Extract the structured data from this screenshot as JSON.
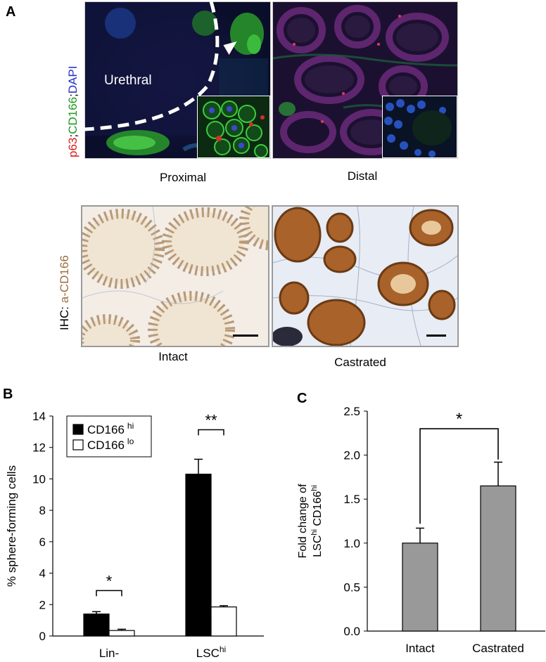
{
  "panel_a": {
    "letter": "A",
    "fluor_label": {
      "p63": "p63",
      "sep1": ";",
      "cd166": "CD166",
      "sep2": ";",
      "dapi": "DAPI"
    },
    "urethral_label": "Urethral",
    "captions": {
      "proximal": "Proximal",
      "distal": "Distal",
      "intact": "Intact",
      "castrated": "Castrated"
    },
    "ihc_label": {
      "prefix": "IHC: ",
      "antibody": "a-CD166"
    },
    "colors": {
      "p63": "#d81e1e",
      "cd166": "#1e9a1e",
      "dapi": "#2233cc",
      "ihc_label": "#9a7040"
    }
  },
  "panel_b": {
    "letter": "B",
    "chart_data": {
      "type": "bar",
      "categories": [
        "Lin-",
        "LSChi"
      ],
      "category_labels": [
        {
          "main": "Lin-",
          "sup": ""
        },
        {
          "main": "LSC",
          "sup": "hi"
        }
      ],
      "series": [
        {
          "name": "CD166 hi",
          "label_main": "CD166",
          "label_sup": "hi",
          "color": "#000000",
          "values": [
            1.4,
            10.3
          ],
          "errors": [
            0.15,
            0.95
          ]
        },
        {
          "name": "CD166 lo",
          "label_main": "CD166",
          "label_sup": "lo",
          "color": "#ffffff",
          "values": [
            0.35,
            1.85
          ],
          "errors": [
            0.08,
            0.08
          ]
        }
      ],
      "ylabel": "% sphere-forming cells",
      "ylim": [
        0,
        14
      ],
      "yticks": [
        0,
        2,
        4,
        6,
        8,
        10,
        12,
        14
      ],
      "significance": [
        "*",
        "**"
      ],
      "legend_position": "top-left"
    }
  },
  "panel_c": {
    "letter": "C",
    "chart_data": {
      "type": "bar",
      "categories": [
        "Intact",
        "Castrated"
      ],
      "values": [
        1.0,
        1.65
      ],
      "errors": [
        0.17,
        0.27
      ],
      "color": "#999999",
      "ylabel_line1": "Fold change  of",
      "ylabel_line2": {
        "a": "LSC",
        "a_sup": "hi",
        "b": " CD166",
        "b_sup": "hi"
      },
      "ylim": [
        0,
        2.5
      ],
      "ytick_labels": [
        "0.0",
        "0.5",
        "1.0",
        "1.5",
        "2.0",
        "2.5"
      ],
      "significance": "*"
    }
  }
}
